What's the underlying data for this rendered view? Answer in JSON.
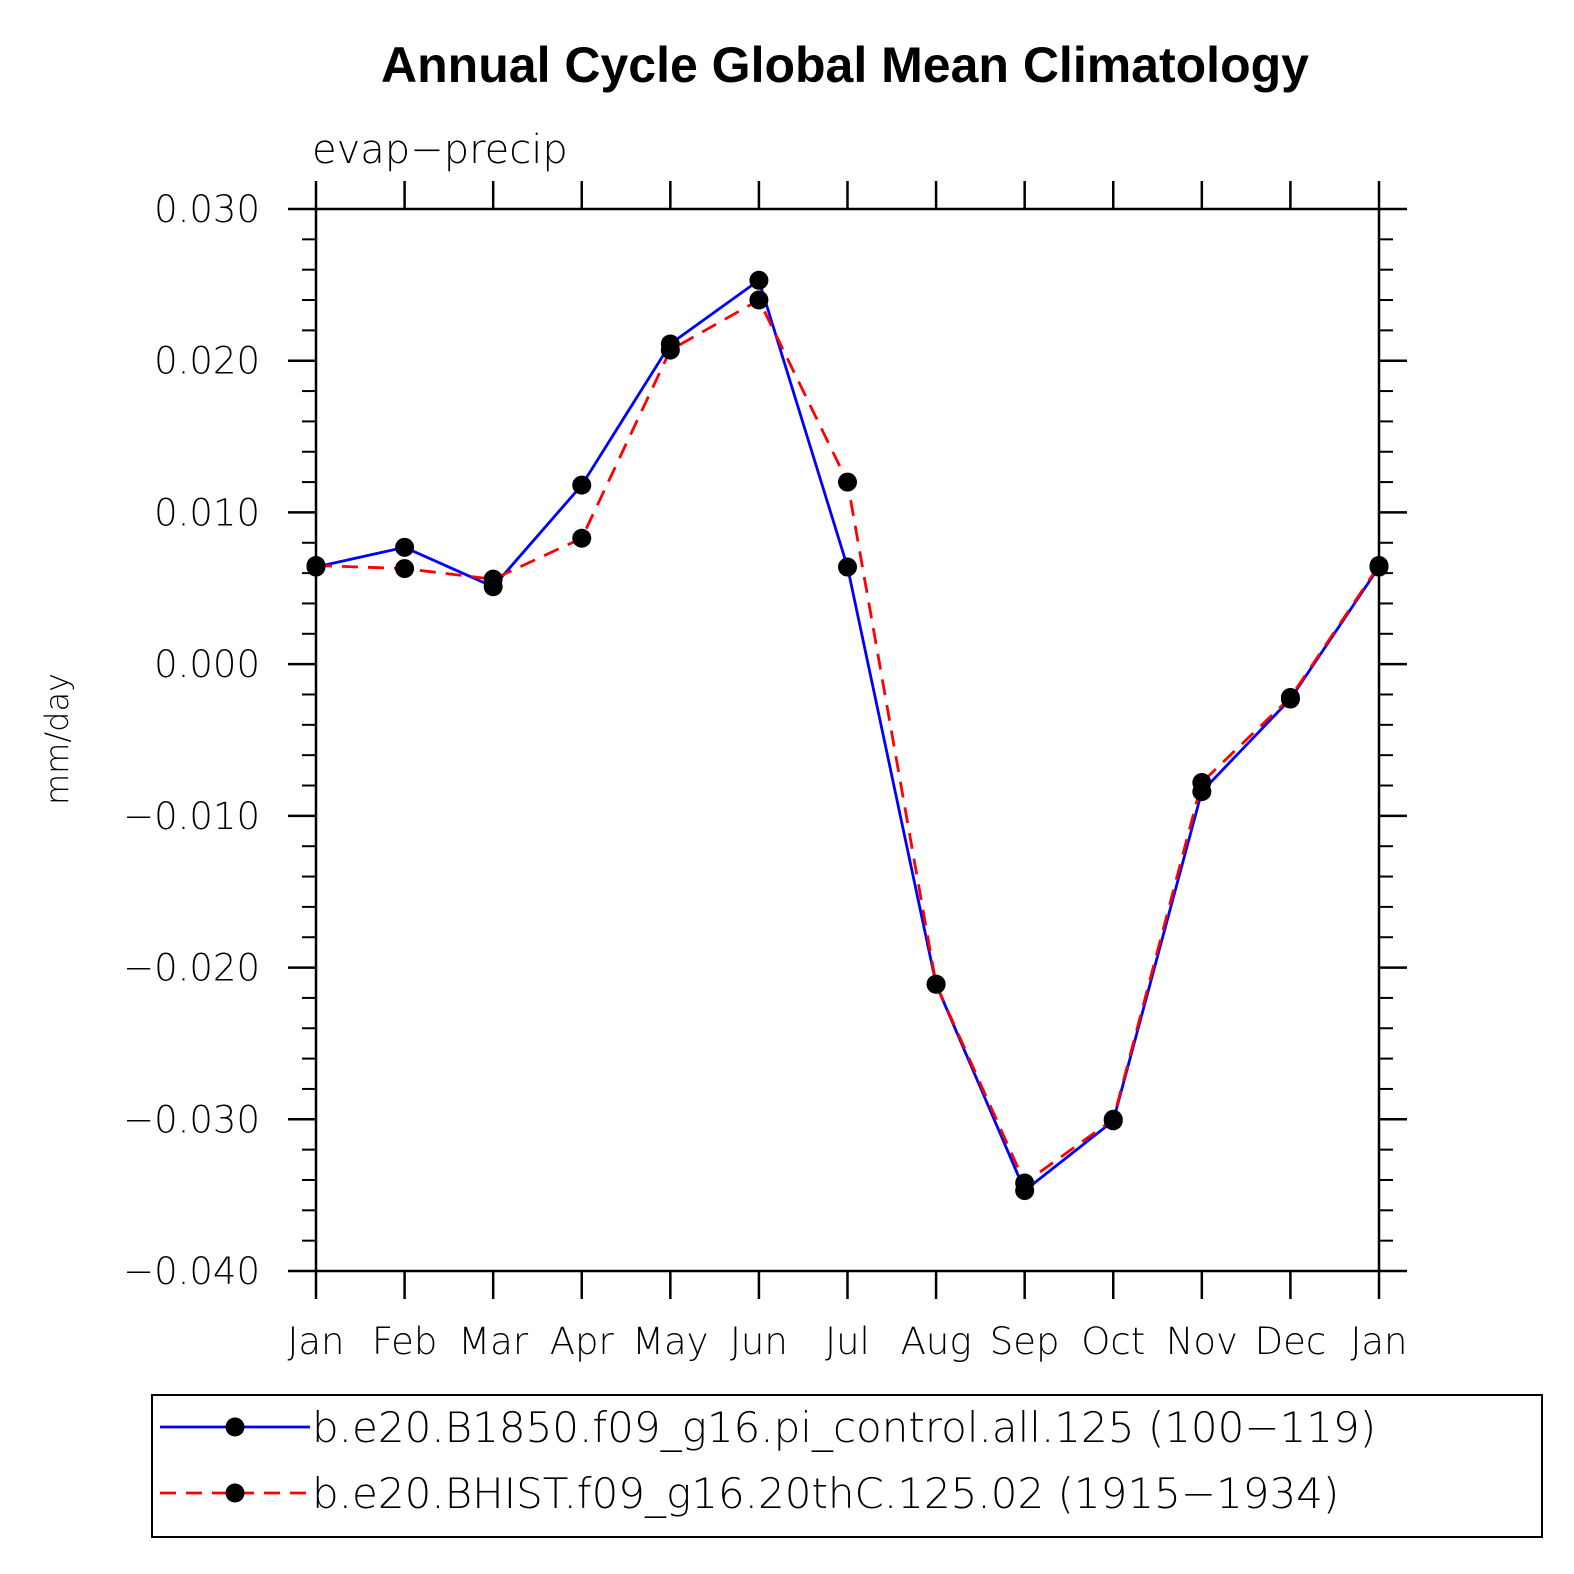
{
  "chart_data": {
    "type": "line",
    "title": "Annual Cycle Global Mean Climatology",
    "subtitle": "evap−precip",
    "ylabel": "mm/day",
    "xlabel": "",
    "categories": [
      "Jan",
      "Feb",
      "Mar",
      "Apr",
      "May",
      "Jun",
      "Jul",
      "Aug",
      "Sep",
      "Oct",
      "Nov",
      "Dec",
      "Jan"
    ],
    "ylim": [
      -0.04,
      0.03
    ],
    "yticks": [
      0.03,
      0.02,
      0.01,
      0.0,
      -0.01,
      -0.02,
      -0.03,
      -0.04
    ],
    "ytick_labels": [
      "0.030",
      "0.020",
      "0.010",
      "0.000",
      "−0.010",
      "−0.020",
      "−0.030",
      "−0.040"
    ],
    "grid": false,
    "legend_position": "bottom",
    "series": [
      {
        "name": "b.e20.B1850.f09_g16.pi_control.all.125 (100−119)",
        "color": "#0000ff",
        "dash": "solid",
        "values": [
          0.0064,
          0.0077,
          0.0051,
          0.0118,
          0.0211,
          0.0253,
          0.0064,
          -0.0211,
          -0.0347,
          -0.0301,
          -0.0084,
          -0.0023,
          0.0064
        ]
      },
      {
        "name": "b.e20.BHIST.f09_g16.20thC.125.02 (1915−1934)",
        "color": "#ff0000",
        "dash": "dashed",
        "values": [
          0.0065,
          0.0063,
          0.0056,
          0.0083,
          0.0207,
          0.024,
          0.012,
          -0.0211,
          -0.0342,
          -0.03,
          -0.0078,
          -0.0022,
          0.0065
        ]
      }
    ]
  }
}
